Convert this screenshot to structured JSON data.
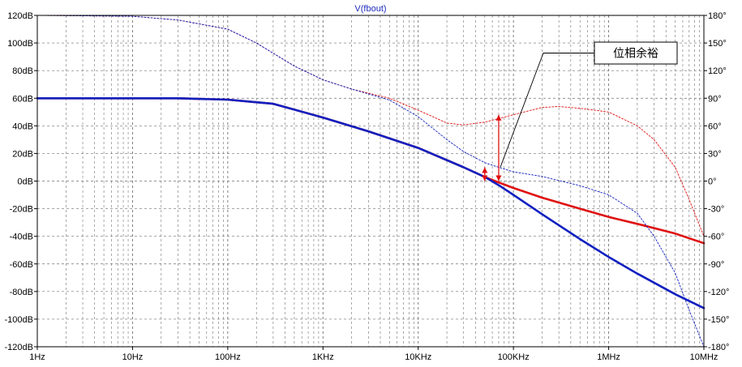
{
  "chart_data": {
    "type": "line",
    "title": "V(fbout)",
    "x_scale": "log",
    "xlim": [
      1,
      10000000
    ],
    "x_ticks": [
      "1Hz",
      "10Hz",
      "100Hz",
      "1KHz",
      "10KHz",
      "100KHz",
      "1MHz",
      "10MHz"
    ],
    "y_left": {
      "lim": [
        -120,
        120
      ],
      "ticks": [
        "120dB",
        "100dB",
        "80dB",
        "60dB",
        "40dB",
        "20dB",
        "0dB",
        "-20dB",
        "-40dB",
        "-60dB",
        "-80dB",
        "-100dB",
        "-120dB"
      ]
    },
    "y_right": {
      "lim": [
        -180,
        180
      ],
      "ticks": [
        "180°",
        "150°",
        "120°",
        "90°",
        "60°",
        "30°",
        "0°",
        "-30°",
        "-60°",
        "-90°",
        "-120°",
        "-150°",
        "-180°"
      ]
    },
    "grid": true,
    "series": [
      {
        "axis": "left",
        "style": "solid",
        "color": "#e01010",
        "x": [
          1,
          10,
          30,
          100,
          300,
          1000,
          3000,
          10000,
          30000,
          50000,
          70000,
          100000,
          200000,
          500000,
          1000000,
          2000000,
          5000000,
          10000000
        ],
        "y": [
          60,
          60,
          60,
          59,
          56,
          46,
          36,
          24,
          10,
          3,
          -1,
          -5,
          -12,
          -20,
          -26,
          -31,
          -38,
          -45
        ]
      },
      {
        "axis": "left",
        "style": "solid",
        "color": "#1020c0",
        "x": [
          1,
          10,
          30,
          100,
          300,
          1000,
          3000,
          10000,
          30000,
          50000,
          70000,
          100000,
          200000,
          500000,
          1000000,
          2000000,
          5000000,
          10000000
        ],
        "y": [
          60,
          60,
          60,
          59,
          56,
          46,
          36,
          24,
          10,
          3,
          -3,
          -10,
          -24,
          -42,
          -55,
          -67,
          -82,
          -92
        ]
      },
      {
        "axis": "right",
        "style": "dashed",
        "color": "#e01010",
        "x": [
          1,
          10,
          30,
          100,
          200,
          500,
          1000,
          2000,
          5000,
          10000,
          20000,
          30000,
          50000,
          100000,
          200000,
          300000,
          500000,
          1000000,
          2000000,
          3000000,
          5000000,
          7000000,
          10000000
        ],
        "y": [
          180,
          179,
          175,
          165,
          150,
          125,
          110,
          100,
          90,
          77,
          63,
          61,
          64,
          72,
          80,
          81,
          79,
          75,
          60,
          45,
          15,
          -20,
          -60
        ]
      },
      {
        "axis": "right",
        "style": "dashed",
        "color": "#1020c0",
        "x": [
          1,
          10,
          30,
          100,
          200,
          500,
          1000,
          2000,
          5000,
          10000,
          20000,
          30000,
          50000,
          70000,
          100000,
          200000,
          500000,
          1000000,
          2000000,
          3000000,
          5000000,
          7000000,
          10000000
        ],
        "y": [
          180,
          179,
          175,
          165,
          150,
          125,
          110,
          100,
          88,
          70,
          45,
          32,
          20,
          15,
          10,
          5,
          -5,
          -15,
          -35,
          -60,
          -100,
          -140,
          -180
        ]
      }
    ],
    "markers": [
      {
        "x": 50000,
        "y1": 0,
        "y2": 10,
        "axis": "left",
        "color": "#e01010"
      },
      {
        "x": 70000,
        "y1": 0,
        "y2": 48,
        "axis": "left",
        "color": "#e01010"
      }
    ],
    "annotation": {
      "text": "位相余裕",
      "target_x": 70000,
      "target_y": 10
    }
  }
}
